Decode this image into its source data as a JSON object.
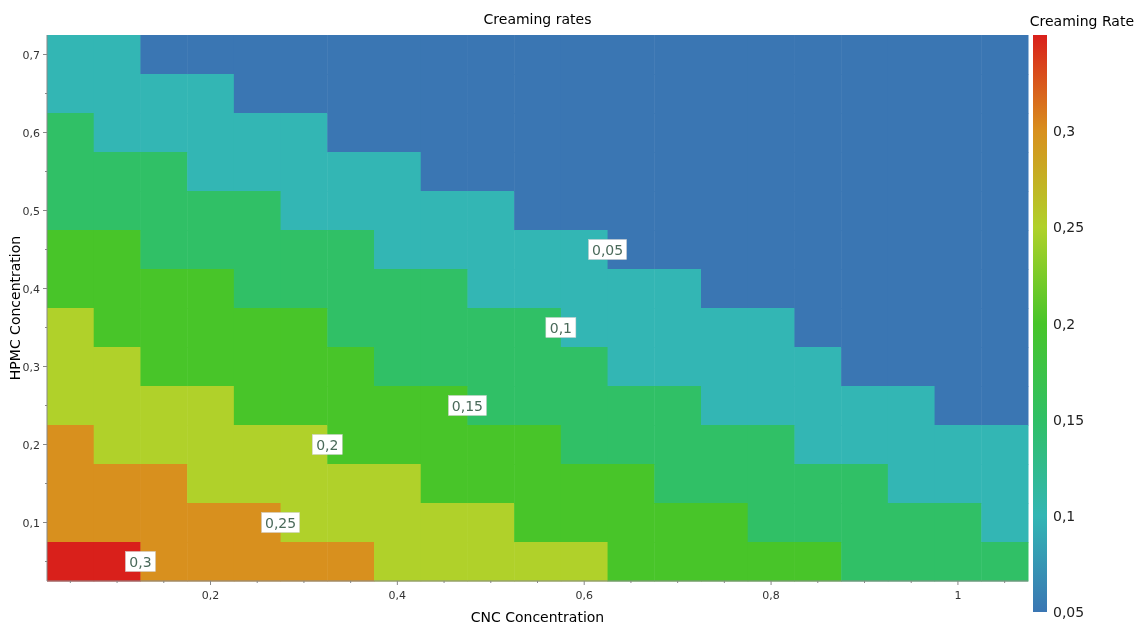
{
  "chart_data": {
    "type": "heatmap",
    "title": "Creaming rates",
    "xlabel": "CNC Concentration",
    "ylabel": "HPMC Concentration",
    "clabel": "Creaming Rate",
    "categories": [
      null,
      null,
      null,
      "0,2",
      null,
      null,
      null,
      "0,4",
      null,
      null,
      null,
      "0,6",
      null,
      null,
      null,
      "0,8",
      null,
      null,
      null,
      "1",
      null
    ],
    "y_categories": [
      "0,7",
      null,
      "0,6",
      null,
      "0,5",
      null,
      "0,4",
      null,
      "0,3",
      null,
      "0,2",
      null,
      "0,1",
      null
    ],
    "cells": [
      [
        0.1,
        0.1,
        0.05,
        0.05,
        0.05,
        0.05,
        0.05,
        0.05,
        0.05,
        0.05,
        0.05,
        0.05,
        0.05,
        0.05,
        0.05,
        0.05,
        0.05,
        0.05,
        0.05,
        0.05,
        0.05
      ],
      [
        0.1,
        0.1,
        0.1,
        0.1,
        0.05,
        0.05,
        0.05,
        0.05,
        0.05,
        0.05,
        0.05,
        0.05,
        0.05,
        0.05,
        0.05,
        0.05,
        0.05,
        0.05,
        0.05,
        0.05,
        0.05
      ],
      [
        0.15,
        0.1,
        0.1,
        0.1,
        0.1,
        0.1,
        0.05,
        0.05,
        0.05,
        0.05,
        0.05,
        0.05,
        0.05,
        0.05,
        0.05,
        0.05,
        0.05,
        0.05,
        0.05,
        0.05,
        0.05
      ],
      [
        0.15,
        0.15,
        0.15,
        0.1,
        0.1,
        0.1,
        0.1,
        0.1,
        0.05,
        0.05,
        0.05,
        0.05,
        0.05,
        0.05,
        0.05,
        0.05,
        0.05,
        0.05,
        0.05,
        0.05,
        0.05
      ],
      [
        0.15,
        0.15,
        0.15,
        0.15,
        0.15,
        0.1,
        0.1,
        0.1,
        0.1,
        0.1,
        0.05,
        0.05,
        0.05,
        0.05,
        0.05,
        0.05,
        0.05,
        0.05,
        0.05,
        0.05,
        0.05
      ],
      [
        0.2,
        0.2,
        0.15,
        0.15,
        0.15,
        0.15,
        0.15,
        0.1,
        0.1,
        0.1,
        0.1,
        0.1,
        0.05,
        0.05,
        0.05,
        0.05,
        0.05,
        0.05,
        0.05,
        0.05,
        0.05
      ],
      [
        0.2,
        0.2,
        0.2,
        0.2,
        0.15,
        0.15,
        0.15,
        0.15,
        0.15,
        0.1,
        0.1,
        0.1,
        0.1,
        0.1,
        0.05,
        0.05,
        0.05,
        0.05,
        0.05,
        0.05,
        0.05
      ],
      [
        0.25,
        0.2,
        0.2,
        0.2,
        0.2,
        0.2,
        0.15,
        0.15,
        0.15,
        0.15,
        0.15,
        0.1,
        0.1,
        0.1,
        0.1,
        0.1,
        0.05,
        0.05,
        0.05,
        0.05,
        0.05
      ],
      [
        0.25,
        0.25,
        0.2,
        0.2,
        0.2,
        0.2,
        0.2,
        0.15,
        0.15,
        0.15,
        0.15,
        0.15,
        0.1,
        0.1,
        0.1,
        0.1,
        0.1,
        0.05,
        0.05,
        0.05,
        0.05
      ],
      [
        0.25,
        0.25,
        0.25,
        0.25,
        0.2,
        0.2,
        0.2,
        0.2,
        0.2,
        0.15,
        0.15,
        0.15,
        0.15,
        0.15,
        0.1,
        0.1,
        0.1,
        0.1,
        0.1,
        0.05,
        0.05
      ],
      [
        0.3,
        0.25,
        0.25,
        0.25,
        0.25,
        0.25,
        0.2,
        0.2,
        0.2,
        0.2,
        0.2,
        0.15,
        0.15,
        0.15,
        0.15,
        0.15,
        0.1,
        0.1,
        0.1,
        0.1,
        0.1
      ],
      [
        0.3,
        0.3,
        0.3,
        0.25,
        0.25,
        0.25,
        0.25,
        0.25,
        0.2,
        0.2,
        0.2,
        0.2,
        0.2,
        0.15,
        0.15,
        0.15,
        0.15,
        0.15,
        0.1,
        0.1,
        0.1
      ],
      [
        0.3,
        0.3,
        0.3,
        0.3,
        0.3,
        0.25,
        0.25,
        0.25,
        0.25,
        0.25,
        0.2,
        0.2,
        0.2,
        0.2,
        0.2,
        0.15,
        0.15,
        0.15,
        0.15,
        0.15,
        0.1
      ],
      [
        0.35,
        0.35,
        0.3,
        0.3,
        0.3,
        0.3,
        0.3,
        0.25,
        0.25,
        0.25,
        0.25,
        0.25,
        0.2,
        0.2,
        0.2,
        0.2,
        0.2,
        0.15,
        0.15,
        0.15,
        0.15
      ]
    ],
    "clim": [
      0.05,
      0.35
    ],
    "cticks": [
      {
        "value": 0.05,
        "label": "0,05"
      },
      {
        "value": 0.1,
        "label": "0,1"
      },
      {
        "value": 0.15,
        "label": "0,15"
      },
      {
        "value": 0.2,
        "label": "0,2"
      },
      {
        "value": 0.25,
        "label": "0,25"
      },
      {
        "value": 0.3,
        "label": "0,3"
      }
    ],
    "colors": [
      "#3a76b3",
      "#33b6b4",
      "#30c066",
      "#48c529",
      "#b0d12a",
      "#d8901e",
      "#d9201b"
    ],
    "annotations": [
      "0,05",
      "0,1",
      "0,15",
      "0,2",
      "0,25",
      "0,3"
    ]
  }
}
